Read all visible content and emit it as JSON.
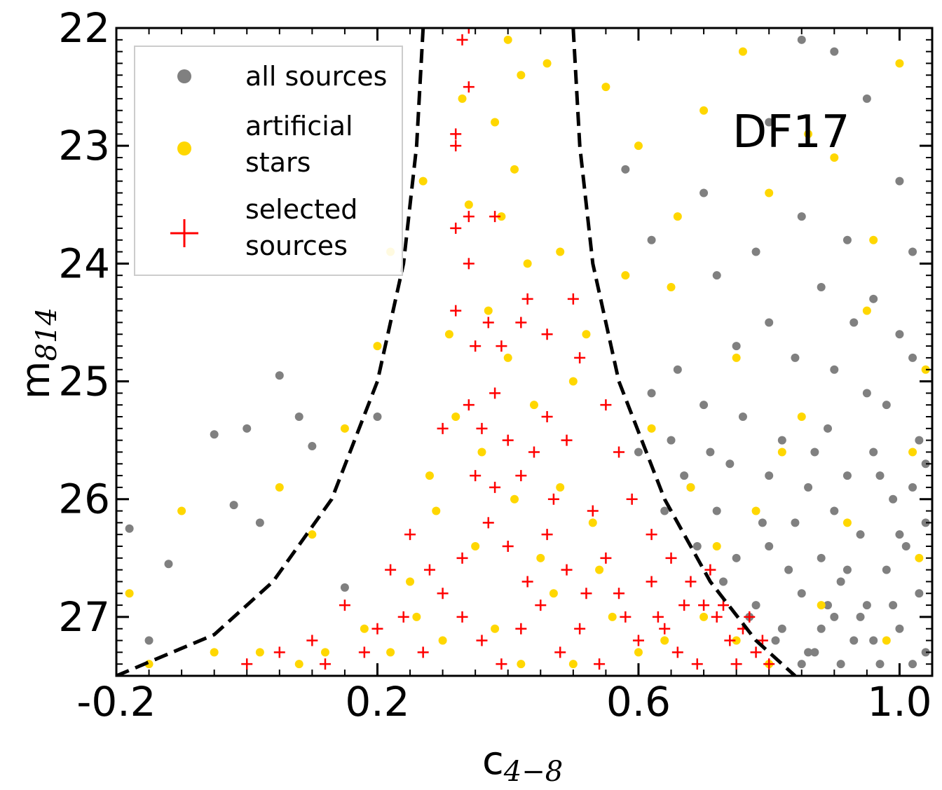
{
  "chart_data": {
    "type": "scatter",
    "title": "",
    "annotation": "DF17",
    "xlabel": {
      "main": "c",
      "sub": "4−8"
    },
    "ylabel": {
      "main": "m",
      "sub": "814"
    },
    "xlim": [
      -0.2,
      1.05
    ],
    "ylim": [
      27.5,
      22.0
    ],
    "y_inverted": true,
    "x_ticks": [
      -0.2,
      0.2,
      0.6,
      1.0
    ],
    "x_tick_labels": [
      "-0.2",
      "0.2",
      "0.6",
      "1.0"
    ],
    "y_ticks": [
      22,
      23,
      24,
      25,
      26,
      27
    ],
    "y_tick_labels": [
      "22",
      "23",
      "24",
      "25",
      "26",
      "27"
    ],
    "legend_position": "top-left",
    "legend": [
      {
        "label_lines": [
          "all sources"
        ],
        "marker": "circle",
        "color": "#808080"
      },
      {
        "label_lines": [
          "artificial",
          "stars"
        ],
        "marker": "circle",
        "color": "#FFD700"
      },
      {
        "label_lines": [
          "selected",
          "sources"
        ],
        "marker": "plus",
        "color": "#FF0000"
      }
    ],
    "series": [
      {
        "name": "all sources",
        "marker": "circle",
        "color": "#808080",
        "points": [
          [
            -0.18,
            26.25
          ],
          [
            -0.12,
            26.55
          ],
          [
            -0.05,
            25.45
          ],
          [
            -0.02,
            26.05
          ],
          [
            0.0,
            25.4
          ],
          [
            0.02,
            26.2
          ],
          [
            0.05,
            24.95
          ],
          [
            0.08,
            25.3
          ],
          [
            0.1,
            25.55
          ],
          [
            0.2,
            25.3
          ],
          [
            0.15,
            26.75
          ],
          [
            -0.15,
            27.2
          ],
          [
            0.65,
            25.5
          ],
          [
            0.68,
            25.9
          ],
          [
            0.7,
            25.2
          ],
          [
            0.72,
            26.1
          ],
          [
            0.74,
            25.7
          ],
          [
            0.75,
            26.5
          ],
          [
            0.76,
            25.3
          ],
          [
            0.78,
            26.9
          ],
          [
            0.8,
            25.8
          ],
          [
            0.8,
            26.4
          ],
          [
            0.82,
            27.1
          ],
          [
            0.82,
            25.5
          ],
          [
            0.84,
            26.2
          ],
          [
            0.85,
            26.8
          ],
          [
            0.86,
            25.9
          ],
          [
            0.87,
            27.3
          ],
          [
            0.88,
            26.5
          ],
          [
            0.89,
            25.4
          ],
          [
            0.9,
            26.1
          ],
          [
            0.9,
            27.0
          ],
          [
            0.91,
            26.7
          ],
          [
            0.92,
            25.8
          ],
          [
            0.93,
            27.2
          ],
          [
            0.94,
            26.3
          ],
          [
            0.95,
            26.9
          ],
          [
            0.96,
            25.6
          ],
          [
            0.97,
            27.4
          ],
          [
            0.98,
            26.6
          ],
          [
            0.99,
            26.0
          ],
          [
            1.0,
            27.1
          ],
          [
            1.01,
            26.4
          ],
          [
            1.02,
            25.9
          ],
          [
            1.03,
            26.8
          ],
          [
            1.04,
            27.3
          ],
          [
            1.04,
            26.2
          ],
          [
            1.03,
            25.5
          ],
          [
            1.02,
            24.8
          ],
          [
            1.0,
            24.6
          ],
          [
            0.98,
            25.2
          ],
          [
            0.96,
            24.3
          ],
          [
            0.92,
            23.8
          ],
          [
            0.88,
            24.2
          ],
          [
            0.85,
            23.6
          ],
          [
            0.8,
            24.5
          ],
          [
            0.78,
            23.9
          ],
          [
            0.75,
            24.7
          ],
          [
            0.72,
            24.1
          ],
          [
            0.7,
            23.4
          ],
          [
            0.66,
            24.9
          ],
          [
            0.62,
            23.8
          ],
          [
            0.58,
            23.2
          ],
          [
            0.9,
            22.2
          ],
          [
            0.95,
            22.6
          ],
          [
            1.0,
            23.3
          ],
          [
            0.85,
            22.1
          ],
          [
            0.8,
            22.8
          ],
          [
            1.02,
            23.9
          ],
          [
            0.93,
            24.5
          ],
          [
            0.97,
            25.8
          ],
          [
            0.99,
            26.9
          ],
          [
            0.94,
            27.0
          ],
          [
            0.91,
            27.4
          ],
          [
            0.89,
            26.9
          ],
          [
            0.86,
            27.3
          ],
          [
            0.83,
            26.6
          ],
          [
            0.81,
            27.2
          ],
          [
            0.79,
            26.2
          ],
          [
            0.77,
            27.0
          ],
          [
            0.73,
            26.7
          ],
          [
            0.71,
            25.6
          ],
          [
            0.69,
            26.4
          ],
          [
            0.67,
            25.8
          ],
          [
            0.64,
            26.1
          ],
          [
            0.62,
            25.1
          ],
          [
            0.6,
            25.6
          ],
          [
            0.85,
            27.4
          ],
          [
            0.88,
            27.1
          ],
          [
            0.92,
            26.6
          ],
          [
            0.96,
            27.2
          ],
          [
            1.0,
            26.3
          ],
          [
            1.02,
            27.4
          ],
          [
            1.04,
            25.7
          ],
          [
            0.95,
            25.1
          ],
          [
            0.9,
            24.9
          ],
          [
            0.87,
            25.6
          ],
          [
            0.84,
            24.8
          ]
        ]
      },
      {
        "name": "artificial stars",
        "marker": "circle",
        "color": "#FFD700",
        "points": [
          [
            0.4,
            22.1
          ],
          [
            0.42,
            22.4
          ],
          [
            0.38,
            22.8
          ],
          [
            0.41,
            23.2
          ],
          [
            0.39,
            23.6
          ],
          [
            0.43,
            24.0
          ],
          [
            0.37,
            24.4
          ],
          [
            0.4,
            24.8
          ],
          [
            0.44,
            25.2
          ],
          [
            0.36,
            25.6
          ],
          [
            0.41,
            26.0
          ],
          [
            0.35,
            26.4
          ],
          [
            0.47,
            26.8
          ],
          [
            0.3,
            27.2
          ],
          [
            0.5,
            27.4
          ],
          [
            0.33,
            22.6
          ],
          [
            0.46,
            22.3
          ],
          [
            0.34,
            23.5
          ],
          [
            0.48,
            23.9
          ],
          [
            0.31,
            24.6
          ],
          [
            0.5,
            25.0
          ],
          [
            0.28,
            25.8
          ],
          [
            0.53,
            26.2
          ],
          [
            0.25,
            26.7
          ],
          [
            0.56,
            27.0
          ],
          [
            0.22,
            27.3
          ],
          [
            0.6,
            27.3
          ],
          [
            0.18,
            27.1
          ],
          [
            0.64,
            27.2
          ],
          [
            0.12,
            27.3
          ],
          [
            0.7,
            27.0
          ],
          [
            0.08,
            27.4
          ],
          [
            0.75,
            27.2
          ],
          [
            0.02,
            27.3
          ],
          [
            0.8,
            27.4
          ],
          [
            -0.05,
            27.3
          ],
          [
            -0.15,
            27.4
          ],
          [
            0.55,
            22.5
          ],
          [
            0.6,
            23.0
          ],
          [
            0.7,
            22.7
          ],
          [
            0.8,
            23.4
          ],
          [
            0.9,
            23.1
          ],
          [
            1.0,
            22.3
          ],
          [
            0.65,
            24.2
          ],
          [
            0.75,
            24.8
          ],
          [
            0.85,
            25.3
          ],
          [
            0.95,
            24.4
          ],
          [
            1.02,
            25.6
          ],
          [
            0.72,
            26.4
          ],
          [
            0.88,
            26.9
          ],
          [
            0.98,
            27.2
          ],
          [
            1.03,
            26.5
          ],
          [
            0.05,
            25.9
          ],
          [
            0.1,
            26.3
          ],
          [
            -0.1,
            26.1
          ],
          [
            -0.18,
            26.8
          ],
          [
            0.15,
            25.4
          ],
          [
            0.2,
            24.7
          ],
          [
            0.22,
            23.9
          ],
          [
            0.27,
            23.3
          ],
          [
            0.58,
            24.1
          ],
          [
            0.62,
            25.4
          ],
          [
            0.68,
            25.9
          ],
          [
            0.78,
            26.1
          ],
          [
            0.82,
            25.6
          ],
          [
            0.92,
            26.2
          ],
          [
            1.04,
            24.9
          ],
          [
            0.96,
            23.8
          ],
          [
            0.86,
            22.9
          ],
          [
            0.76,
            22.2
          ],
          [
            0.66,
            23.6
          ],
          [
            0.52,
            24.6
          ],
          [
            0.45,
            26.5
          ],
          [
            0.38,
            27.1
          ],
          [
            0.42,
            27.4
          ],
          [
            0.26,
            27.0
          ],
          [
            0.29,
            26.1
          ],
          [
            0.32,
            25.3
          ],
          [
            0.48,
            25.9
          ],
          [
            0.54,
            26.6
          ]
        ]
      },
      {
        "name": "selected sources",
        "marker": "plus",
        "color": "#FF0000",
        "points": [
          [
            0.34,
            22.0
          ],
          [
            0.33,
            22.1
          ],
          [
            0.34,
            22.5
          ],
          [
            0.32,
            22.9
          ],
          [
            0.32,
            23.0
          ],
          [
            0.34,
            23.6
          ],
          [
            0.32,
            23.7
          ],
          [
            0.34,
            24.0
          ],
          [
            0.38,
            23.6
          ],
          [
            0.43,
            24.3
          ],
          [
            0.5,
            24.3
          ],
          [
            0.32,
            24.4
          ],
          [
            0.37,
            24.5
          ],
          [
            0.42,
            24.5
          ],
          [
            0.46,
            24.6
          ],
          [
            0.35,
            24.7
          ],
          [
            0.39,
            24.7
          ],
          [
            0.51,
            24.8
          ],
          [
            0.34,
            25.2
          ],
          [
            0.38,
            25.1
          ],
          [
            0.46,
            25.3
          ],
          [
            0.3,
            25.4
          ],
          [
            0.36,
            25.4
          ],
          [
            0.4,
            25.5
          ],
          [
            0.44,
            25.6
          ],
          [
            0.49,
            25.5
          ],
          [
            0.55,
            25.2
          ],
          [
            0.57,
            25.6
          ],
          [
            0.38,
            25.9
          ],
          [
            0.42,
            25.8
          ],
          [
            0.47,
            26.0
          ],
          [
            0.53,
            26.1
          ],
          [
            0.59,
            26.0
          ],
          [
            0.62,
            26.3
          ],
          [
            0.65,
            26.5
          ],
          [
            0.68,
            26.7
          ],
          [
            0.7,
            26.9
          ],
          [
            0.72,
            27.0
          ],
          [
            0.74,
            27.2
          ],
          [
            0.76,
            27.1
          ],
          [
            0.78,
            27.3
          ],
          [
            0.8,
            27.4
          ],
          [
            0.25,
            26.3
          ],
          [
            0.28,
            26.6
          ],
          [
            0.3,
            26.8
          ],
          [
            0.33,
            27.0
          ],
          [
            0.36,
            27.2
          ],
          [
            0.39,
            27.4
          ],
          [
            0.42,
            27.1
          ],
          [
            0.45,
            26.9
          ],
          [
            0.48,
            27.3
          ],
          [
            0.51,
            27.1
          ],
          [
            0.54,
            27.4
          ],
          [
            0.57,
            26.8
          ],
          [
            0.6,
            27.2
          ],
          [
            0.63,
            27.0
          ],
          [
            0.66,
            27.3
          ],
          [
            0.69,
            27.4
          ],
          [
            0.71,
            26.6
          ],
          [
            0.73,
            26.9
          ],
          [
            0.75,
            27.4
          ],
          [
            0.77,
            27.0
          ],
          [
            0.79,
            27.2
          ],
          [
            0.15,
            26.9
          ],
          [
            0.2,
            27.1
          ],
          [
            0.12,
            27.4
          ],
          [
            0.05,
            27.3
          ],
          [
            0.0,
            27.4
          ],
          [
            0.1,
            27.2
          ],
          [
            0.22,
            26.6
          ],
          [
            0.18,
            27.3
          ],
          [
            0.62,
            26.7
          ],
          [
            0.64,
            27.1
          ],
          [
            0.67,
            26.9
          ],
          [
            0.58,
            27.0
          ],
          [
            0.55,
            26.5
          ],
          [
            0.52,
            26.8
          ],
          [
            0.49,
            26.6
          ],
          [
            0.46,
            26.3
          ],
          [
            0.43,
            26.7
          ],
          [
            0.4,
            26.4
          ],
          [
            0.37,
            26.2
          ],
          [
            0.35,
            25.8
          ],
          [
            0.33,
            26.5
          ],
          [
            0.27,
            27.3
          ],
          [
            0.24,
            27.0
          ]
        ]
      }
    ],
    "selection_curves": {
      "style": "dashed",
      "color": "#000000",
      "left": [
        [
          0.27,
          22.0
        ],
        [
          0.26,
          23.0
        ],
        [
          0.24,
          24.0
        ],
        [
          0.2,
          25.0
        ],
        [
          0.13,
          26.0
        ],
        [
          0.04,
          26.7
        ],
        [
          -0.05,
          27.15
        ],
        [
          -0.2,
          27.5
        ]
      ],
      "right": [
        [
          0.5,
          22.0
        ],
        [
          0.51,
          23.0
        ],
        [
          0.53,
          24.0
        ],
        [
          0.57,
          25.0
        ],
        [
          0.64,
          26.0
        ],
        [
          0.71,
          26.7
        ],
        [
          0.78,
          27.2
        ],
        [
          0.84,
          27.5
        ]
      ]
    }
  }
}
